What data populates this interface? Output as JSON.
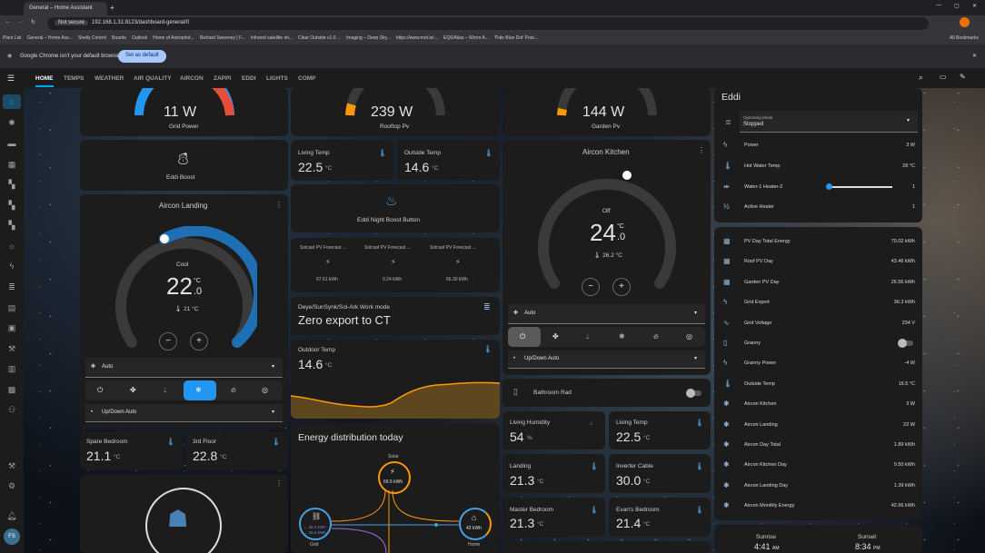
{
  "browser": {
    "tab_title": "General – Home Assistant",
    "not_secure": "Not secure",
    "url": "192.168.1.31:8123/dashboard-general/0",
    "bookmarks": [
      "Plant List",
      "General – Home Ass...",
      "Shelly Control",
      "Boards",
      "Outlook",
      "Home of Astrophot...",
      "Richard Sweeney | F...",
      "Infrared satellite im...",
      "Clear Outside v1.0 ...",
      "Imaging – Deep Sky...",
      "https://www.met.ie/...",
      "EQ6/Atlas – Worm A...",
      "'Pale Blue Dot' Post..."
    ],
    "all_bookmarks": "All Bookmarks",
    "notice": "Google Chrome isn't your default browser",
    "set_default": "Set as default",
    "avatar": "FS"
  },
  "ha": {
    "tabs": [
      "HOME",
      "TEMPS",
      "WEATHER",
      "AIR QUALITY",
      "AIRCON",
      "ZAPPI",
      "EDDI",
      "LIGHTS",
      "COMP"
    ]
  },
  "col1": {
    "grid_power": {
      "value": "11 W",
      "label": "Grid Power"
    },
    "eddi_boost": "Eddi Boost",
    "aircon_landing": {
      "title": "Aircon Landing",
      "mode": "Cool",
      "temp": "22",
      "temp_dec": ".0",
      "unit": "°C",
      "current": "21 °C",
      "hvac_mode": "Auto",
      "preset": "Up/Down Auto"
    },
    "spare_bedroom": {
      "label": "Spare Bedroom",
      "value": "21.1",
      "unit": "°C"
    },
    "third_floor": {
      "label": "3rd Floor",
      "value": "22.8",
      "unit": "°C"
    }
  },
  "col2": {
    "rooftop": {
      "value": "239 W",
      "label": "Rooftop Pv"
    },
    "living_temp": {
      "label": "Living Temp",
      "value": "22.5",
      "unit": "°C"
    },
    "outside_temp": {
      "label": "Outside Temp",
      "value": "14.6",
      "unit": "°C"
    },
    "night_boost": "Eddi Night Boost Button",
    "solcast": [
      {
        "label": "Solcast PV Forecast ...",
        "value": "67.61 kWh"
      },
      {
        "label": "Solcast PV Forecast ...",
        "value": "0.24 kWh"
      },
      {
        "label": "Solcast PV Forecast ...",
        "value": "66.30 kWh"
      }
    ],
    "deye": {
      "label": "Deye/SunSynk/Sol-Ark Work mode",
      "value": "Zero export to CT"
    },
    "outdoor": {
      "label": "Outdoor Temp",
      "value": "14.6",
      "unit": "°C"
    },
    "energy": {
      "title": "Energy distribution today",
      "solar": "Solar",
      "solar_val": "69.5 kWh",
      "grid": "Grid",
      "grid_out": "← 36.3 kWh",
      "grid_in": "→ 25.5 kWh",
      "home": "Home",
      "home_val": "42 kWh"
    }
  },
  "col3": {
    "garden": {
      "value": "144 W",
      "label": "Garden Pv"
    },
    "aircon_kitchen": {
      "title": "Aircon Kitchen",
      "mode": "Off",
      "temp": "24",
      "temp_dec": ".0",
      "unit": "°C",
      "current": "26.2 °C",
      "hvac_mode": "Auto",
      "preset": "Up/Down Auto"
    },
    "bathroom_rad": "Bathroom Rad",
    "living_humidity": {
      "label": "Living Humidity",
      "value": "54",
      "unit": "%"
    },
    "living_temp": {
      "label": "Living Temp",
      "value": "22.5",
      "unit": "°C"
    },
    "landing": {
      "label": "Landing",
      "value": "21.3",
      "unit": "°C"
    },
    "inverter_cable": {
      "label": "Inverter Cable",
      "value": "30.0",
      "unit": "°C"
    },
    "master_bedroom": {
      "label": "Master Bedroom",
      "value": "21.3",
      "unit": "°C"
    },
    "evans_bedroom": {
      "label": "Evan's Bedroom",
      "value": "21.4",
      "unit": "°C"
    }
  },
  "col4": {
    "eddi": {
      "title": "Eddi",
      "op_mode_label": "Operating Mode",
      "op_mode": "Stopped",
      "rows": [
        {
          "name": "Power",
          "value": "3 W"
        },
        {
          "name": "Hot Water Temp",
          "value": "28 °C"
        },
        {
          "name": "Water-1 Heater-2",
          "value": "1"
        },
        {
          "name": "Active Heater",
          "value": "1"
        }
      ]
    },
    "entities": [
      {
        "name": "PV Day Total Energy",
        "value": "70.02 kWh"
      },
      {
        "name": "Roof PV Day",
        "value": "43.46 kWh"
      },
      {
        "name": "Garden PV Day",
        "value": "26.56 kWh"
      },
      {
        "name": "Grid Export",
        "value": "36.3 kWh"
      },
      {
        "name": "Grid Voltage",
        "value": "234 V"
      },
      {
        "name": "Granny",
        "value": ""
      },
      {
        "name": "Granny Power",
        "value": "-4 W"
      },
      {
        "name": "Outside Temp",
        "value": "16.5 °C"
      },
      {
        "name": "Aircon Kitchen",
        "value": "3 W"
      },
      {
        "name": "Aircon Landing",
        "value": "22 W"
      },
      {
        "name": "Aircon Day Total",
        "value": "1.89 kWh"
      },
      {
        "name": "Aircon Kitchen Day",
        "value": "0.50 kWh"
      },
      {
        "name": "Aircon Landing Day",
        "value": "1.39 kWh"
      },
      {
        "name": "Aircon Monthly Energy",
        "value": "42.66 kWh"
      }
    ],
    "sunrise": {
      "label": "Sunrise",
      "value": "4:41",
      "ampm": "AM"
    },
    "sunset": {
      "label": "Sunset",
      "value": "8:34",
      "ampm": "PM"
    }
  }
}
